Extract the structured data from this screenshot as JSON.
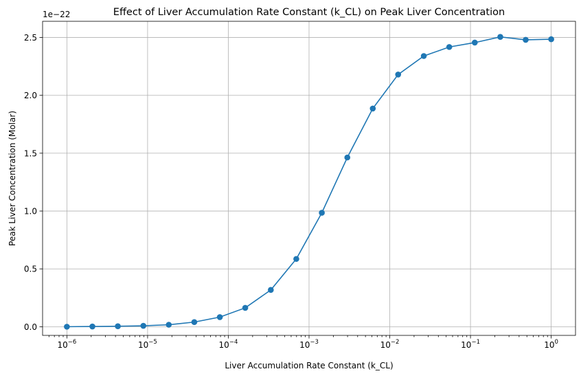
{
  "chart_data": {
    "type": "line",
    "title": "Effect of Liver Accumulation Rate Constant (k_CL) on Peak Liver Concentration",
    "xlabel": "Liver Accumulation Rate Constant (k_CL)",
    "ylabel": "Peak Liver Concentration (Molar)",
    "x_scale": "log",
    "xlim": [
      5e-07,
      2.0
    ],
    "ylim": [
      -0.075,
      2.64
    ],
    "y_multiplier": "1e−22",
    "grid": true,
    "marker": "circle",
    "color": "#1f77b4",
    "x_ticks": [
      {
        "value": 1e-06,
        "base": "10",
        "exp": "−6"
      },
      {
        "value": 1e-05,
        "base": "10",
        "exp": "−5"
      },
      {
        "value": 0.0001,
        "base": "10",
        "exp": "−4"
      },
      {
        "value": 0.001,
        "base": "10",
        "exp": "−3"
      },
      {
        "value": 0.01,
        "base": "10",
        "exp": "−2"
      },
      {
        "value": 0.1,
        "base": "10",
        "exp": "−1"
      },
      {
        "value": 1,
        "base": "10",
        "exp": "0"
      }
    ],
    "y_ticks": [
      {
        "value": 0.0,
        "label": "0.0"
      },
      {
        "value": 0.5,
        "label": "0.5"
      },
      {
        "value": 1.0,
        "label": "1.0"
      },
      {
        "value": 1.5,
        "label": "1.5"
      },
      {
        "value": 2.0,
        "label": "2.0"
      },
      {
        "value": 2.5,
        "label": "2.5"
      }
    ],
    "series": [
      {
        "x": [
          1e-06,
          2.07e-06,
          4.28e-06,
          8.86e-06,
          1.83e-05,
          3.79e-05,
          7.85e-05,
          0.000162,
          0.000336,
          0.000695,
          0.00144,
          0.00298,
          0.00616,
          0.0127,
          0.0264,
          0.0546,
          0.113,
          0.234,
          0.483,
          1.0
        ],
        "y": [
          0.0,
          0.002,
          0.004,
          0.008,
          0.017,
          0.04,
          0.083,
          0.163,
          0.318,
          0.586,
          0.985,
          1.463,
          1.886,
          2.18,
          2.34,
          2.418,
          2.456,
          2.505,
          2.48,
          2.485
        ]
      }
    ]
  }
}
